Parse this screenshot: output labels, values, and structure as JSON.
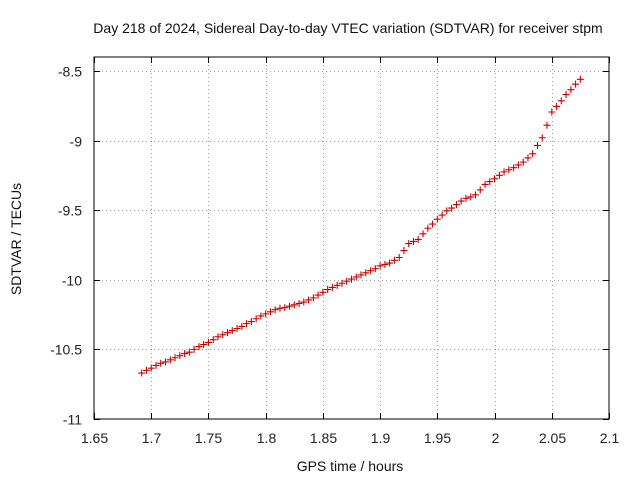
{
  "chart_data": {
    "type": "scatter",
    "title": "Day 218 of 2024, Sidereal Day-to-day VTEC variation (SDTVAR) for receiver stpm",
    "xlabel": "GPS time / hours",
    "ylabel": "SDTVAR / TECUs",
    "xlim": [
      1.65,
      2.1
    ],
    "ylim": [
      -11,
      -8.4
    ],
    "x_ticks": [
      1.65,
      1.7,
      1.75,
      1.8,
      1.85,
      1.9,
      1.95,
      2.0,
      2.05,
      2.1
    ],
    "x_tick_labels": [
      "1.65",
      "1.7",
      "1.75",
      "1.8",
      "1.85",
      "1.9",
      "1.95",
      "2",
      "2.05",
      "2.1"
    ],
    "y_ticks": [
      -8.5,
      -9,
      -9.5,
      -10,
      -10.5,
      -11
    ],
    "y_tick_labels": [
      "-8.5",
      "-9",
      "-9.5",
      "-10",
      "-10.5",
      "-11"
    ],
    "grid": true,
    "marker": "+",
    "marker_color": "#cc0000",
    "series": [
      {
        "name": "SDTVAR",
        "x": [
          1.6917,
          1.6958,
          1.7,
          1.7042,
          1.7083,
          1.7125,
          1.7167,
          1.7208,
          1.725,
          1.7292,
          1.7333,
          1.7375,
          1.7417,
          1.7458,
          1.75,
          1.7542,
          1.7583,
          1.7625,
          1.7667,
          1.7708,
          1.775,
          1.7792,
          1.7833,
          1.7875,
          1.7917,
          1.7958,
          1.8,
          1.8042,
          1.8083,
          1.8125,
          1.8167,
          1.8208,
          1.825,
          1.8292,
          1.8333,
          1.8375,
          1.8417,
          1.8458,
          1.85,
          1.8542,
          1.8583,
          1.8625,
          1.8667,
          1.8708,
          1.875,
          1.8792,
          1.8833,
          1.8875,
          1.8917,
          1.8958,
          1.9,
          1.9042,
          1.9083,
          1.9125,
          1.9167,
          1.9208,
          1.925,
          1.9292,
          1.9333,
          1.9375,
          1.9417,
          1.9458,
          1.95,
          1.9542,
          1.9583,
          1.9625,
          1.9667,
          1.9708,
          1.975,
          1.9792,
          1.9833,
          1.9875,
          1.9917,
          1.9958,
          2.0,
          2.0042,
          2.0083,
          2.0125,
          2.0167,
          2.0208,
          2.025,
          2.0292,
          2.0333,
          2.0375,
          2.0417,
          2.0458,
          2.05,
          2.0542,
          2.0583,
          2.0625,
          2.0667,
          2.0708,
          2.075
        ],
        "y": [
          -10.67,
          -10.65,
          -10.635,
          -10.615,
          -10.6,
          -10.59,
          -10.575,
          -10.56,
          -10.545,
          -10.53,
          -10.52,
          -10.5,
          -10.48,
          -10.465,
          -10.45,
          -10.43,
          -10.41,
          -10.395,
          -10.38,
          -10.365,
          -10.35,
          -10.335,
          -10.315,
          -10.3,
          -10.28,
          -10.26,
          -10.245,
          -10.23,
          -10.215,
          -10.205,
          -10.2,
          -10.19,
          -10.18,
          -10.17,
          -10.16,
          -10.145,
          -10.13,
          -10.11,
          -10.09,
          -10.07,
          -10.055,
          -10.04,
          -10.025,
          -10.01,
          -9.995,
          -9.98,
          -9.965,
          -9.95,
          -9.935,
          -9.92,
          -9.9,
          -9.89,
          -9.88,
          -9.86,
          -9.84,
          -9.79,
          -9.74,
          -9.725,
          -9.71,
          -9.67,
          -9.63,
          -9.6,
          -9.565,
          -9.535,
          -9.505,
          -9.485,
          -9.46,
          -9.435,
          -9.415,
          -9.405,
          -9.39,
          -9.355,
          -9.315,
          -9.295,
          -9.275,
          -9.25,
          -9.225,
          -9.21,
          -9.195,
          -9.175,
          -9.155,
          -9.125,
          -9.095,
          -9.035,
          -8.98,
          -8.89,
          -8.795,
          -8.755,
          -8.715,
          -8.67,
          -8.635,
          -8.595,
          -8.56
        ]
      }
    ]
  }
}
